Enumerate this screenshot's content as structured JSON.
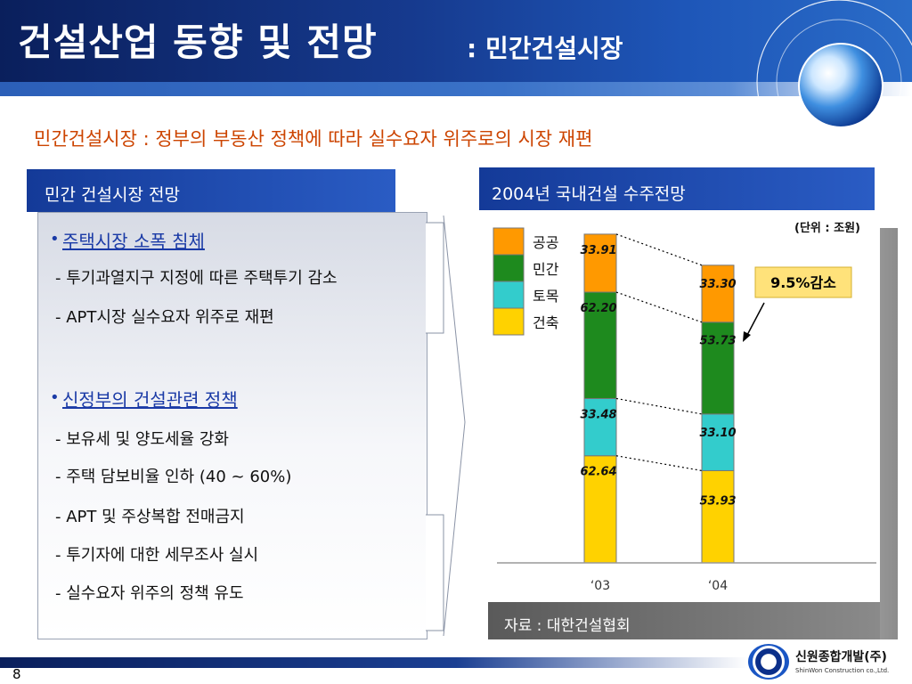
{
  "header": {
    "title": "건설산업 동향 및 전망",
    "subtitle": ": 민간건설시장"
  },
  "headline": "민간건설시장 : 정부의 부동산 정책에 따라 실수요자 위주로의 시장 재편",
  "left_panel": {
    "title": "민간 건설시장 전망",
    "bullet_glyph": "•",
    "sections": [
      {
        "heading": "주택시장 소폭 침체",
        "items": [
          "- 투기과열지구 지정에 따른 주택투기 감소",
          "- APT시장 실수요자 위주로 재편"
        ]
      },
      {
        "heading": "신정부의 건설관련 정책",
        "items": [
          "- 보유세 및 양도세율 강화",
          "- 주택 담보비율 인하 (40 ~ 60%)",
          "- APT 및 주상복합 전매금지",
          "- 투기자에  대한 세무조사 실시",
          "- 실수요자 위주의 정책 유도"
        ]
      }
    ]
  },
  "right_panel": {
    "title": "2004년 국내건설 수주전망",
    "unit_note": "(단위 : 조원)",
    "callout": "9.5%감소",
    "source": "자료 : 대한건설협회"
  },
  "chart_data": {
    "type": "bar",
    "stacked": true,
    "categories": [
      "‘03",
      "‘04"
    ],
    "series": [
      {
        "name": "건축",
        "color": "#ffd200",
        "values": [
          62.64,
          53.93
        ]
      },
      {
        "name": "토목",
        "color": "#33cccc",
        "values": [
          33.48,
          33.1
        ]
      },
      {
        "name": "민간",
        "color": "#1e8a1e",
        "values": [
          62.2,
          53.73
        ]
      },
      {
        "name": "공공",
        "color": "#ff9900",
        "values": [
          33.91,
          33.3
        ]
      }
    ],
    "legend_order": [
      "공공",
      "민간",
      "토목",
      "건축"
    ],
    "legend_position": "top-left",
    "ylim": [
      0,
      200
    ],
    "grid": false
  },
  "footer": {
    "page_number": "8",
    "company_name": "신원종합개발(주)",
    "company_name_en": "ShinWon Construction co.,Ltd."
  }
}
